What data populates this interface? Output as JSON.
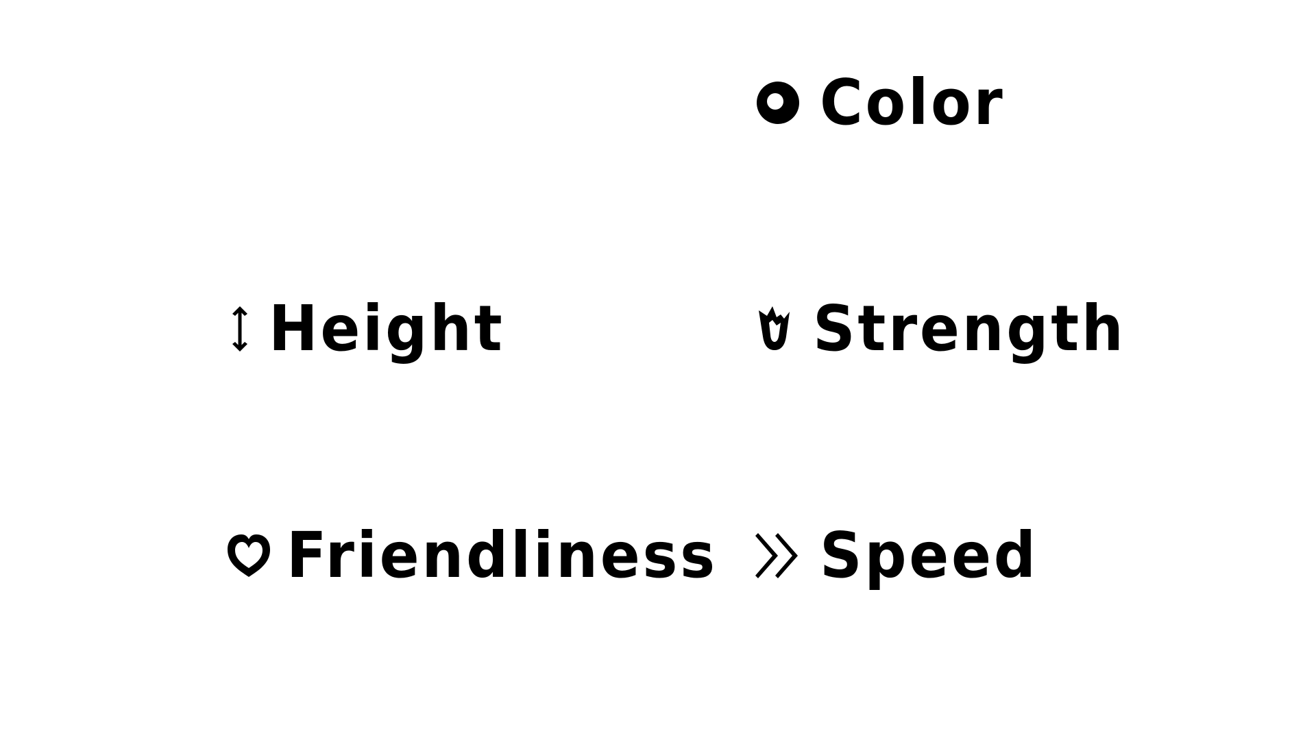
{
  "attributes": [
    {
      "label": "Color",
      "icon": "circle-ring-icon"
    },
    {
      "label": "Height",
      "icon": "vertical-arrows-icon"
    },
    {
      "label": "Strength",
      "icon": "crown-shield-icon"
    },
    {
      "label": "Friendliness",
      "icon": "heart-icon"
    },
    {
      "label": "Speed",
      "icon": "double-chevron-right-icon"
    }
  ],
  "colors": {
    "background": "#ffffff",
    "foreground": "#000000"
  }
}
